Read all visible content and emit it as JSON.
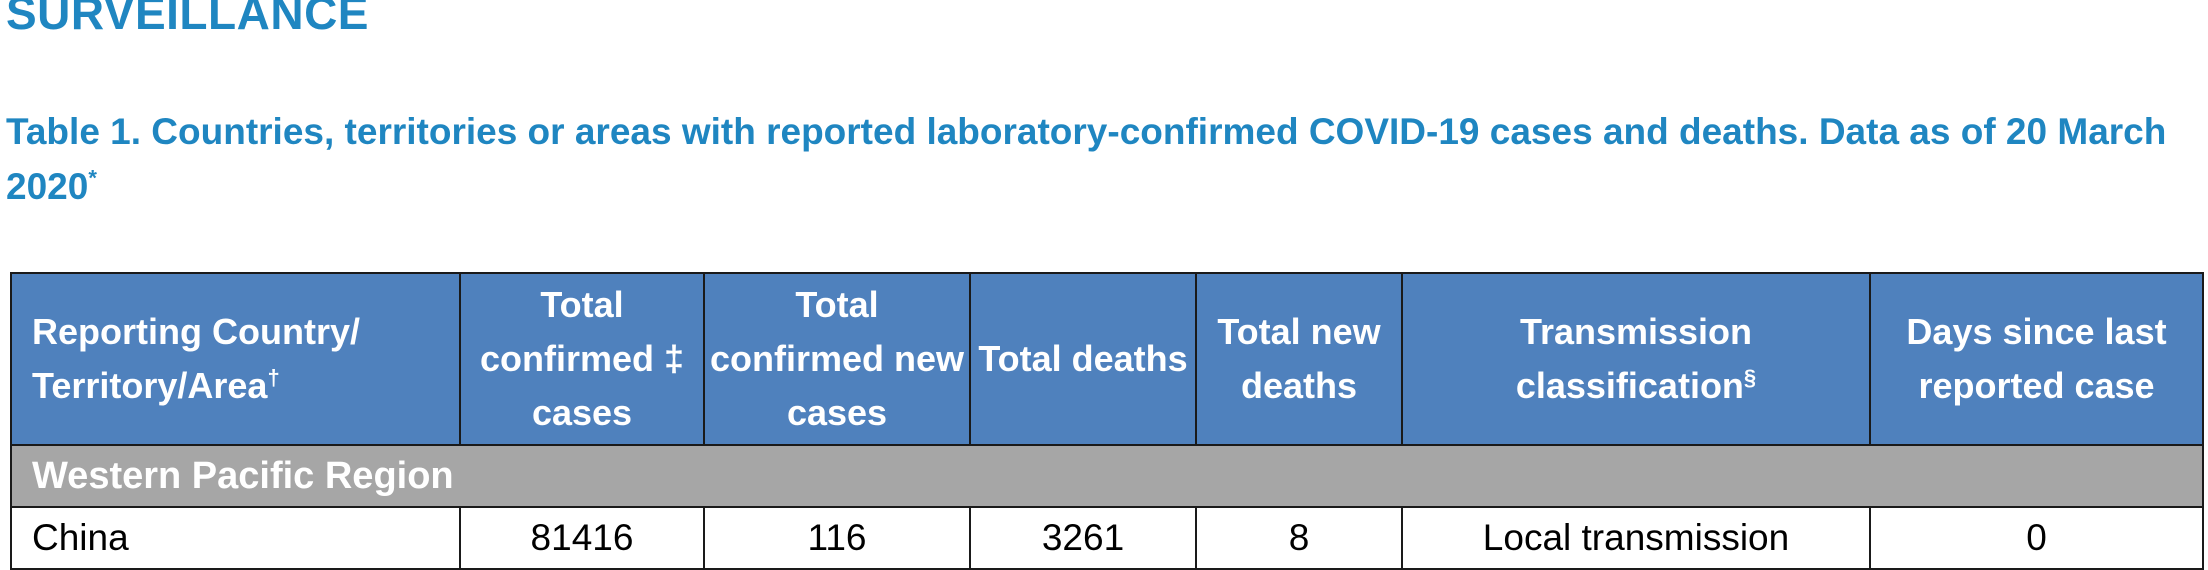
{
  "section": {
    "heading": "SURVEILLANCE"
  },
  "table_caption": {
    "text": "Table 1. Countries, territories or areas with reported laboratory-confirmed COVID-19 cases and deaths. Data as of 20 March 2020",
    "footnote_mark": "*"
  },
  "table": {
    "headers": [
      {
        "label": "Reporting Country/ Territory/Area",
        "mark": "†"
      },
      {
        "label": "Total confirmed ‡ cases"
      },
      {
        "label": "Total confirmed new cases"
      },
      {
        "label": "Total deaths"
      },
      {
        "label": "Total new deaths"
      },
      {
        "label": "Transmission classification",
        "mark": "§"
      },
      {
        "label": "Days since last reported case"
      }
    ],
    "region": "Western Pacific Region",
    "rows": [
      {
        "country": "China",
        "total_confirmed_cases": "81416",
        "total_confirmed_new_cases": "116",
        "total_deaths": "3261",
        "total_new_deaths": "8",
        "transmission_classification": "Local transmission",
        "days_since_last_reported_case": "0"
      }
    ]
  },
  "colors": {
    "heading_blue": "#1f86c1",
    "header_fill": "#4f81bd",
    "region_fill": "#a6a6a6",
    "border": "#1a1a1a"
  }
}
